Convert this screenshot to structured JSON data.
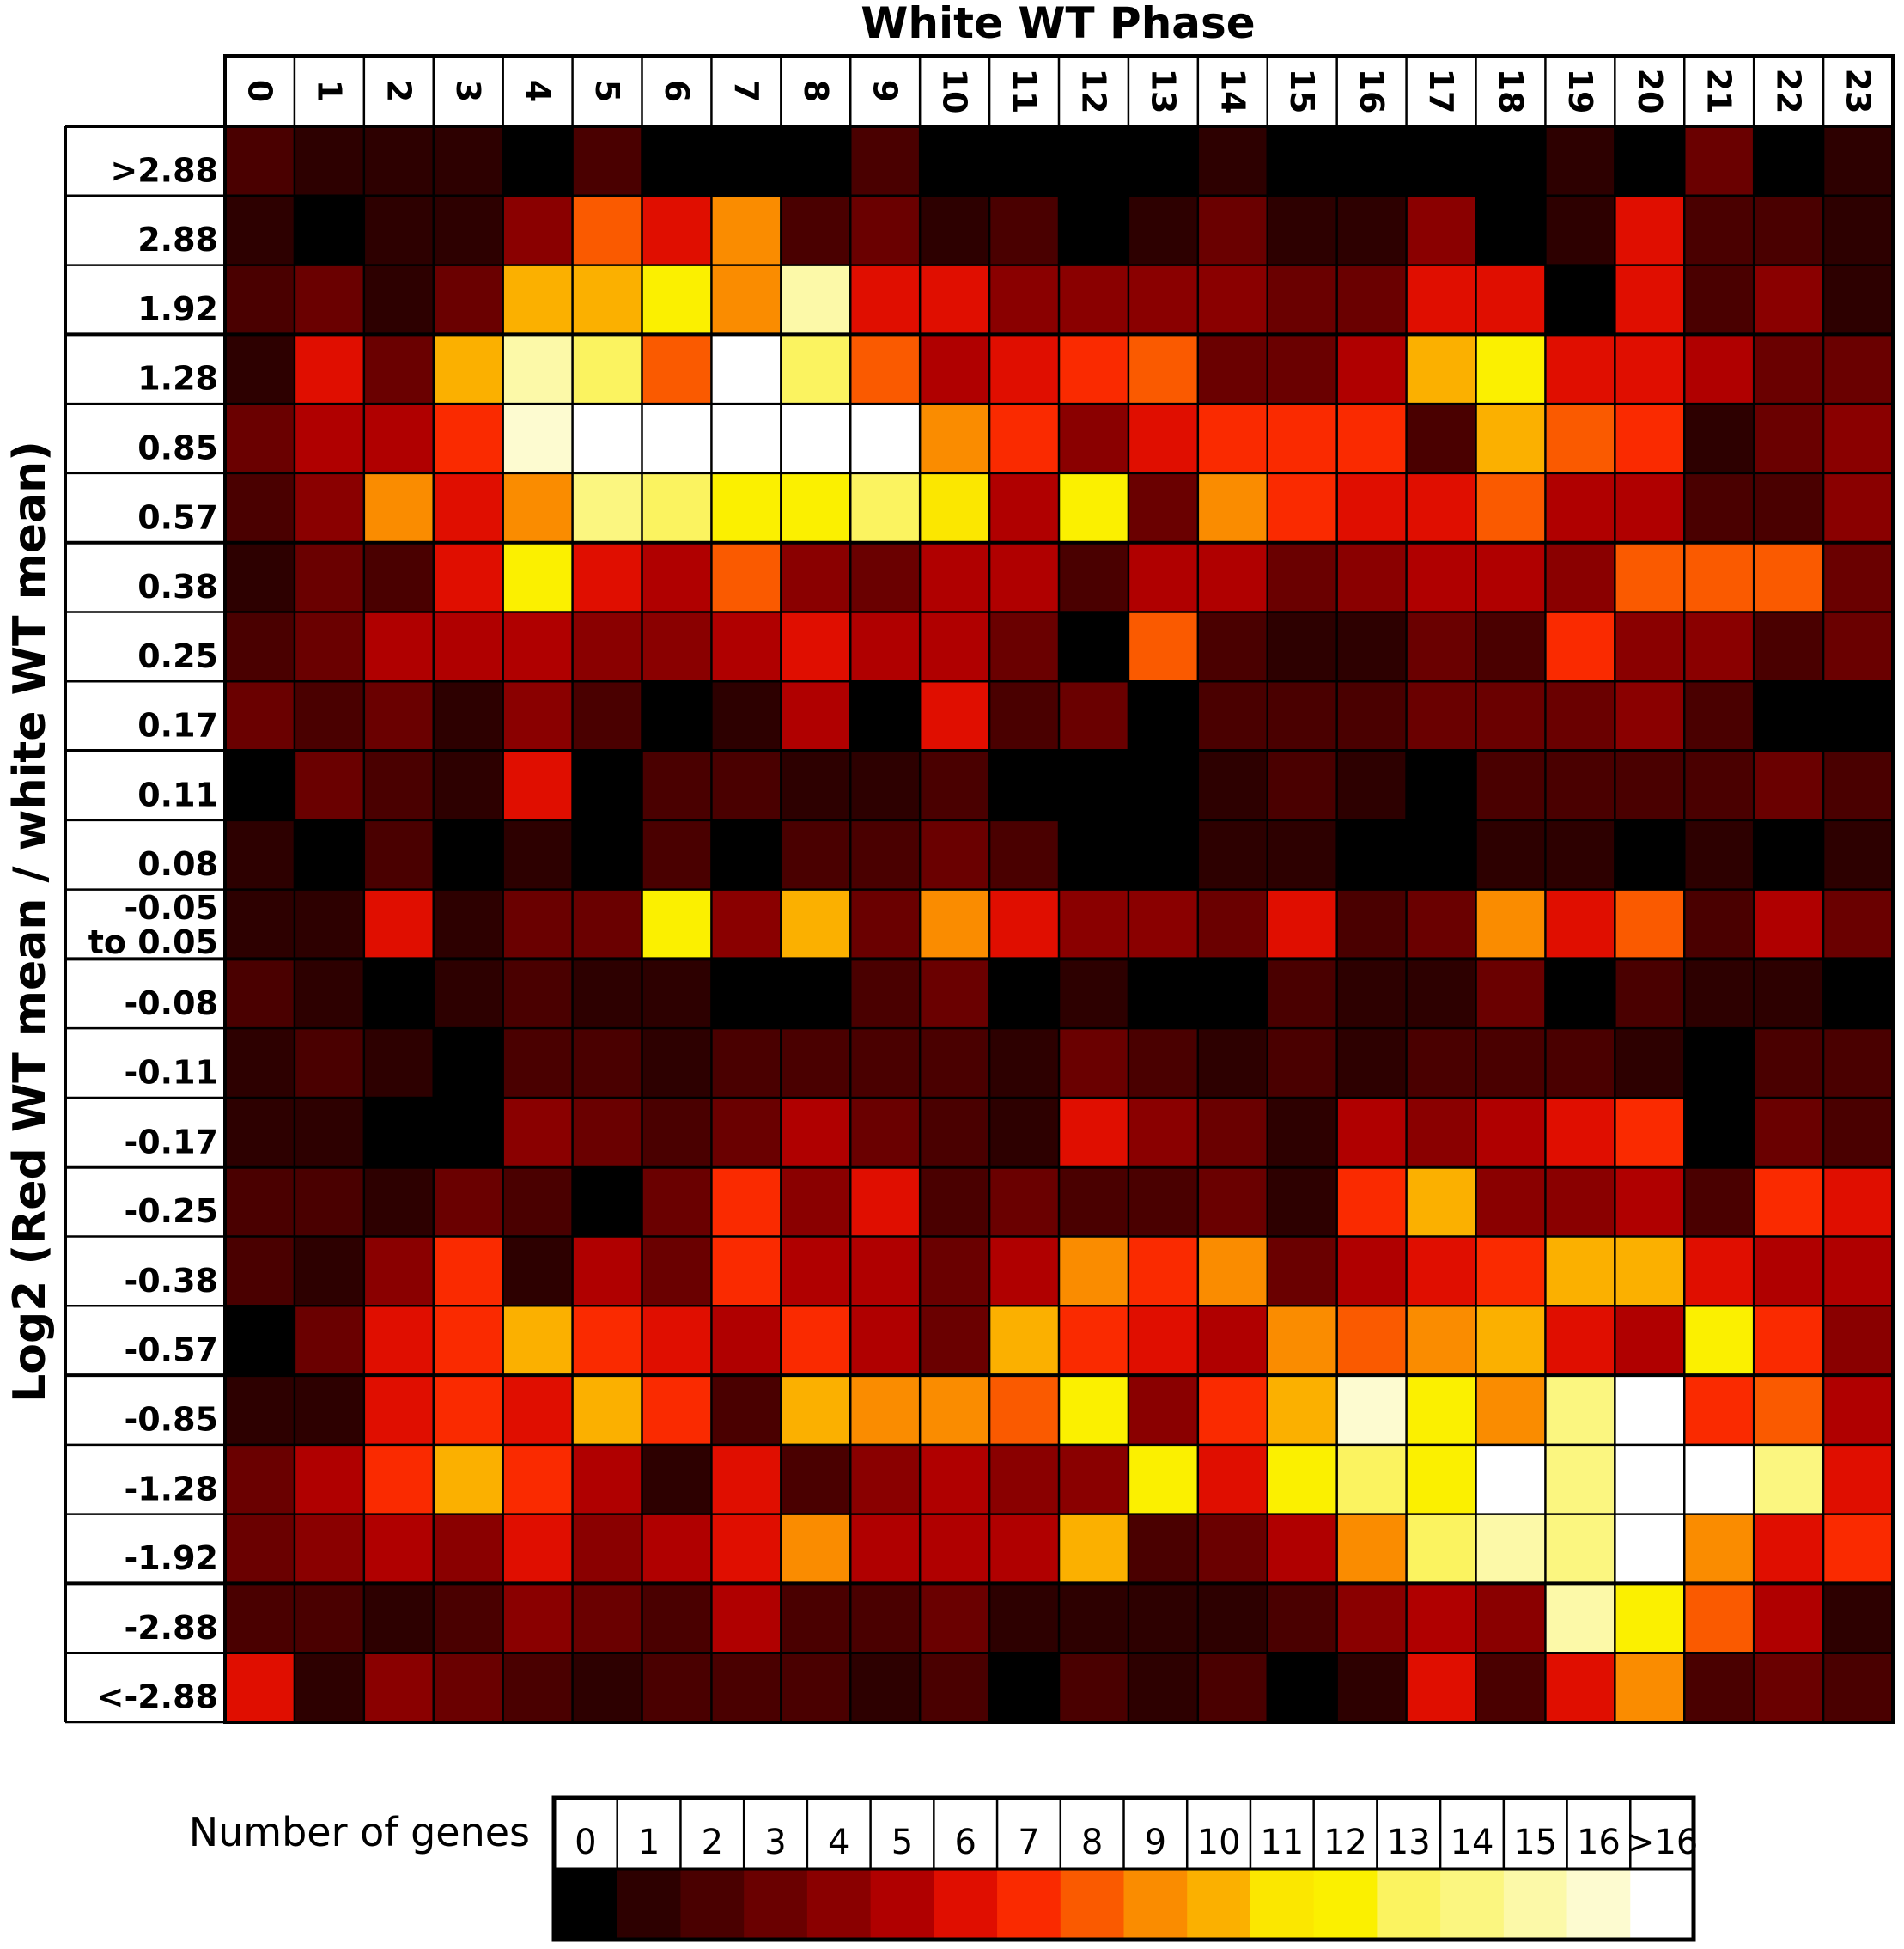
{
  "chart_data": {
    "type": "heatmap",
    "title": "White WT Phase",
    "ylabel": "Log2 (Red WT mean / white WT mean)",
    "x_categories": [
      "0",
      "1",
      "2",
      "3",
      "4",
      "5",
      "6",
      "7",
      "8",
      "9",
      "10",
      "11",
      "12",
      "13",
      "14",
      "15",
      "16",
      "17",
      "18",
      "19",
      "20",
      "21",
      "22",
      "23"
    ],
    "y_categories": [
      ">2.88",
      "2.88",
      "1.92",
      "1.28",
      "0.85",
      "0.57",
      "0.38",
      "0.25",
      "0.17",
      "0.11",
      "0.08",
      "-0.05 to 0.05",
      "-0.08",
      "-0.11",
      "-0.17",
      "-0.25",
      "-0.38",
      "-0.57",
      "-0.85",
      "-1.28",
      "-1.92",
      "-2.88",
      "<-2.88"
    ],
    "values": [
      [
        2,
        1,
        1,
        1,
        0,
        2,
        0,
        0,
        0,
        2,
        0,
        0,
        0,
        0,
        1,
        0,
        0,
        0,
        0,
        1,
        0,
        3,
        0,
        1
      ],
      [
        1,
        0,
        1,
        1,
        4,
        8,
        6,
        9,
        2,
        3,
        1,
        2,
        0,
        1,
        3,
        1,
        1,
        4,
        0,
        1,
        6,
        2,
        2,
        1
      ],
      [
        2,
        3,
        1,
        3,
        10,
        10,
        12,
        9,
        15,
        6,
        6,
        4,
        4,
        4,
        4,
        3,
        3,
        6,
        6,
        0,
        6,
        2,
        4,
        1
      ],
      [
        1,
        6,
        3,
        10,
        15,
        13,
        8,
        17,
        13,
        8,
        5,
        6,
        7,
        8,
        3,
        3,
        5,
        10,
        12,
        6,
        6,
        5,
        3,
        3
      ],
      [
        3,
        5,
        5,
        7,
        16,
        17,
        17,
        17,
        17,
        17,
        9,
        7,
        4,
        6,
        7,
        7,
        7,
        2,
        10,
        8,
        7,
        1,
        3,
        4
      ],
      [
        2,
        4,
        9,
        6,
        9,
        14,
        13,
        12,
        12,
        13,
        11,
        5,
        12,
        3,
        9,
        7,
        6,
        6,
        8,
        5,
        5,
        2,
        2,
        4
      ],
      [
        1,
        3,
        2,
        6,
        12,
        6,
        5,
        8,
        4,
        3,
        5,
        5,
        2,
        5,
        5,
        3,
        4,
        5,
        5,
        4,
        8,
        8,
        8,
        3
      ],
      [
        2,
        3,
        5,
        5,
        5,
        4,
        4,
        5,
        6,
        5,
        5,
        3,
        0,
        8,
        2,
        1,
        1,
        3,
        2,
        7,
        4,
        4,
        2,
        3
      ],
      [
        3,
        2,
        3,
        1,
        4,
        2,
        0,
        1,
        5,
        0,
        6,
        2,
        3,
        0,
        2,
        2,
        2,
        3,
        3,
        3,
        4,
        2,
        0,
        0
      ],
      [
        0,
        3,
        2,
        1,
        6,
        0,
        2,
        2,
        1,
        1,
        2,
        0,
        0,
        0,
        1,
        2,
        1,
        0,
        2,
        2,
        2,
        2,
        3,
        2
      ],
      [
        1,
        0,
        2,
        0,
        1,
        0,
        2,
        0,
        2,
        2,
        3,
        2,
        0,
        0,
        1,
        1,
        0,
        0,
        1,
        1,
        0,
        1,
        0,
        1
      ],
      [
        1,
        1,
        6,
        1,
        3,
        3,
        12,
        4,
        10,
        3,
        9,
        6,
        4,
        4,
        3,
        6,
        2,
        3,
        9,
        6,
        8,
        2,
        5,
        3
      ],
      [
        2,
        1,
        0,
        1,
        2,
        1,
        1,
        0,
        0,
        2,
        3,
        0,
        1,
        0,
        0,
        2,
        1,
        1,
        3,
        0,
        2,
        1,
        1,
        0
      ],
      [
        1,
        2,
        1,
        0,
        2,
        2,
        1,
        2,
        2,
        2,
        2,
        1,
        3,
        2,
        1,
        2,
        1,
        2,
        2,
        2,
        1,
        0,
        2,
        2
      ],
      [
        1,
        1,
        0,
        0,
        4,
        3,
        2,
        3,
        5,
        3,
        2,
        1,
        6,
        4,
        3,
        1,
        5,
        4,
        5,
        6,
        7,
        0,
        3,
        2
      ],
      [
        2,
        2,
        1,
        3,
        2,
        0,
        3,
        7,
        4,
        6,
        2,
        3,
        2,
        2,
        3,
        1,
        7,
        10,
        4,
        4,
        5,
        2,
        7,
        6
      ],
      [
        2,
        1,
        4,
        7,
        1,
        5,
        3,
        7,
        5,
        5,
        3,
        5,
        9,
        7,
        9,
        3,
        5,
        6,
        7,
        10,
        10,
        6,
        5,
        5
      ],
      [
        0,
        3,
        6,
        7,
        10,
        7,
        6,
        5,
        7,
        5,
        3,
        10,
        7,
        6,
        5,
        9,
        8,
        9,
        10,
        6,
        5,
        12,
        7,
        4
      ],
      [
        1,
        1,
        6,
        7,
        6,
        10,
        7,
        2,
        10,
        9,
        9,
        8,
        12,
        4,
        7,
        10,
        16,
        12,
        9,
        14,
        17,
        7,
        8,
        5
      ],
      [
        3,
        5,
        7,
        10,
        7,
        5,
        1,
        6,
        2,
        4,
        5,
        4,
        4,
        12,
        6,
        12,
        13,
        12,
        17,
        14,
        17,
        17,
        14,
        6
      ],
      [
        3,
        4,
        5,
        4,
        6,
        4,
        5,
        6,
        9,
        5,
        5,
        5,
        10,
        2,
        3,
        5,
        9,
        13,
        15,
        14,
        17,
        9,
        6,
        7
      ],
      [
        2,
        2,
        1,
        2,
        4,
        3,
        2,
        5,
        2,
        2,
        3,
        1,
        1,
        1,
        1,
        2,
        4,
        5,
        4,
        15,
        12,
        8,
        5,
        1
      ],
      [
        6,
        1,
        4,
        3,
        2,
        1,
        2,
        2,
        2,
        1,
        2,
        0,
        2,
        1,
        2,
        0,
        1,
        6,
        2,
        6,
        9,
        2,
        3,
        2
      ]
    ],
    "legend": {
      "title": "Number of genes",
      "labels": [
        "0",
        "1",
        "2",
        "3",
        "4",
        "5",
        "6",
        "7",
        "8",
        "9",
        "10",
        "11",
        "12",
        "13",
        "14",
        "15",
        "16",
        ">16"
      ],
      "colors": [
        "#000000",
        "#2d0000",
        "#4a0000",
        "#6a0000",
        "#8a0000",
        "#b00000",
        "#e00e00",
        "#fa2a00",
        "#fa5a00",
        "#fa8c00",
        "#fbb000",
        "#fbe700",
        "#fbf000",
        "#fbf360",
        "#fbf680",
        "#fcf9a8",
        "#fdfbd0",
        "#ffffff"
      ]
    },
    "grid_lines": true
  }
}
